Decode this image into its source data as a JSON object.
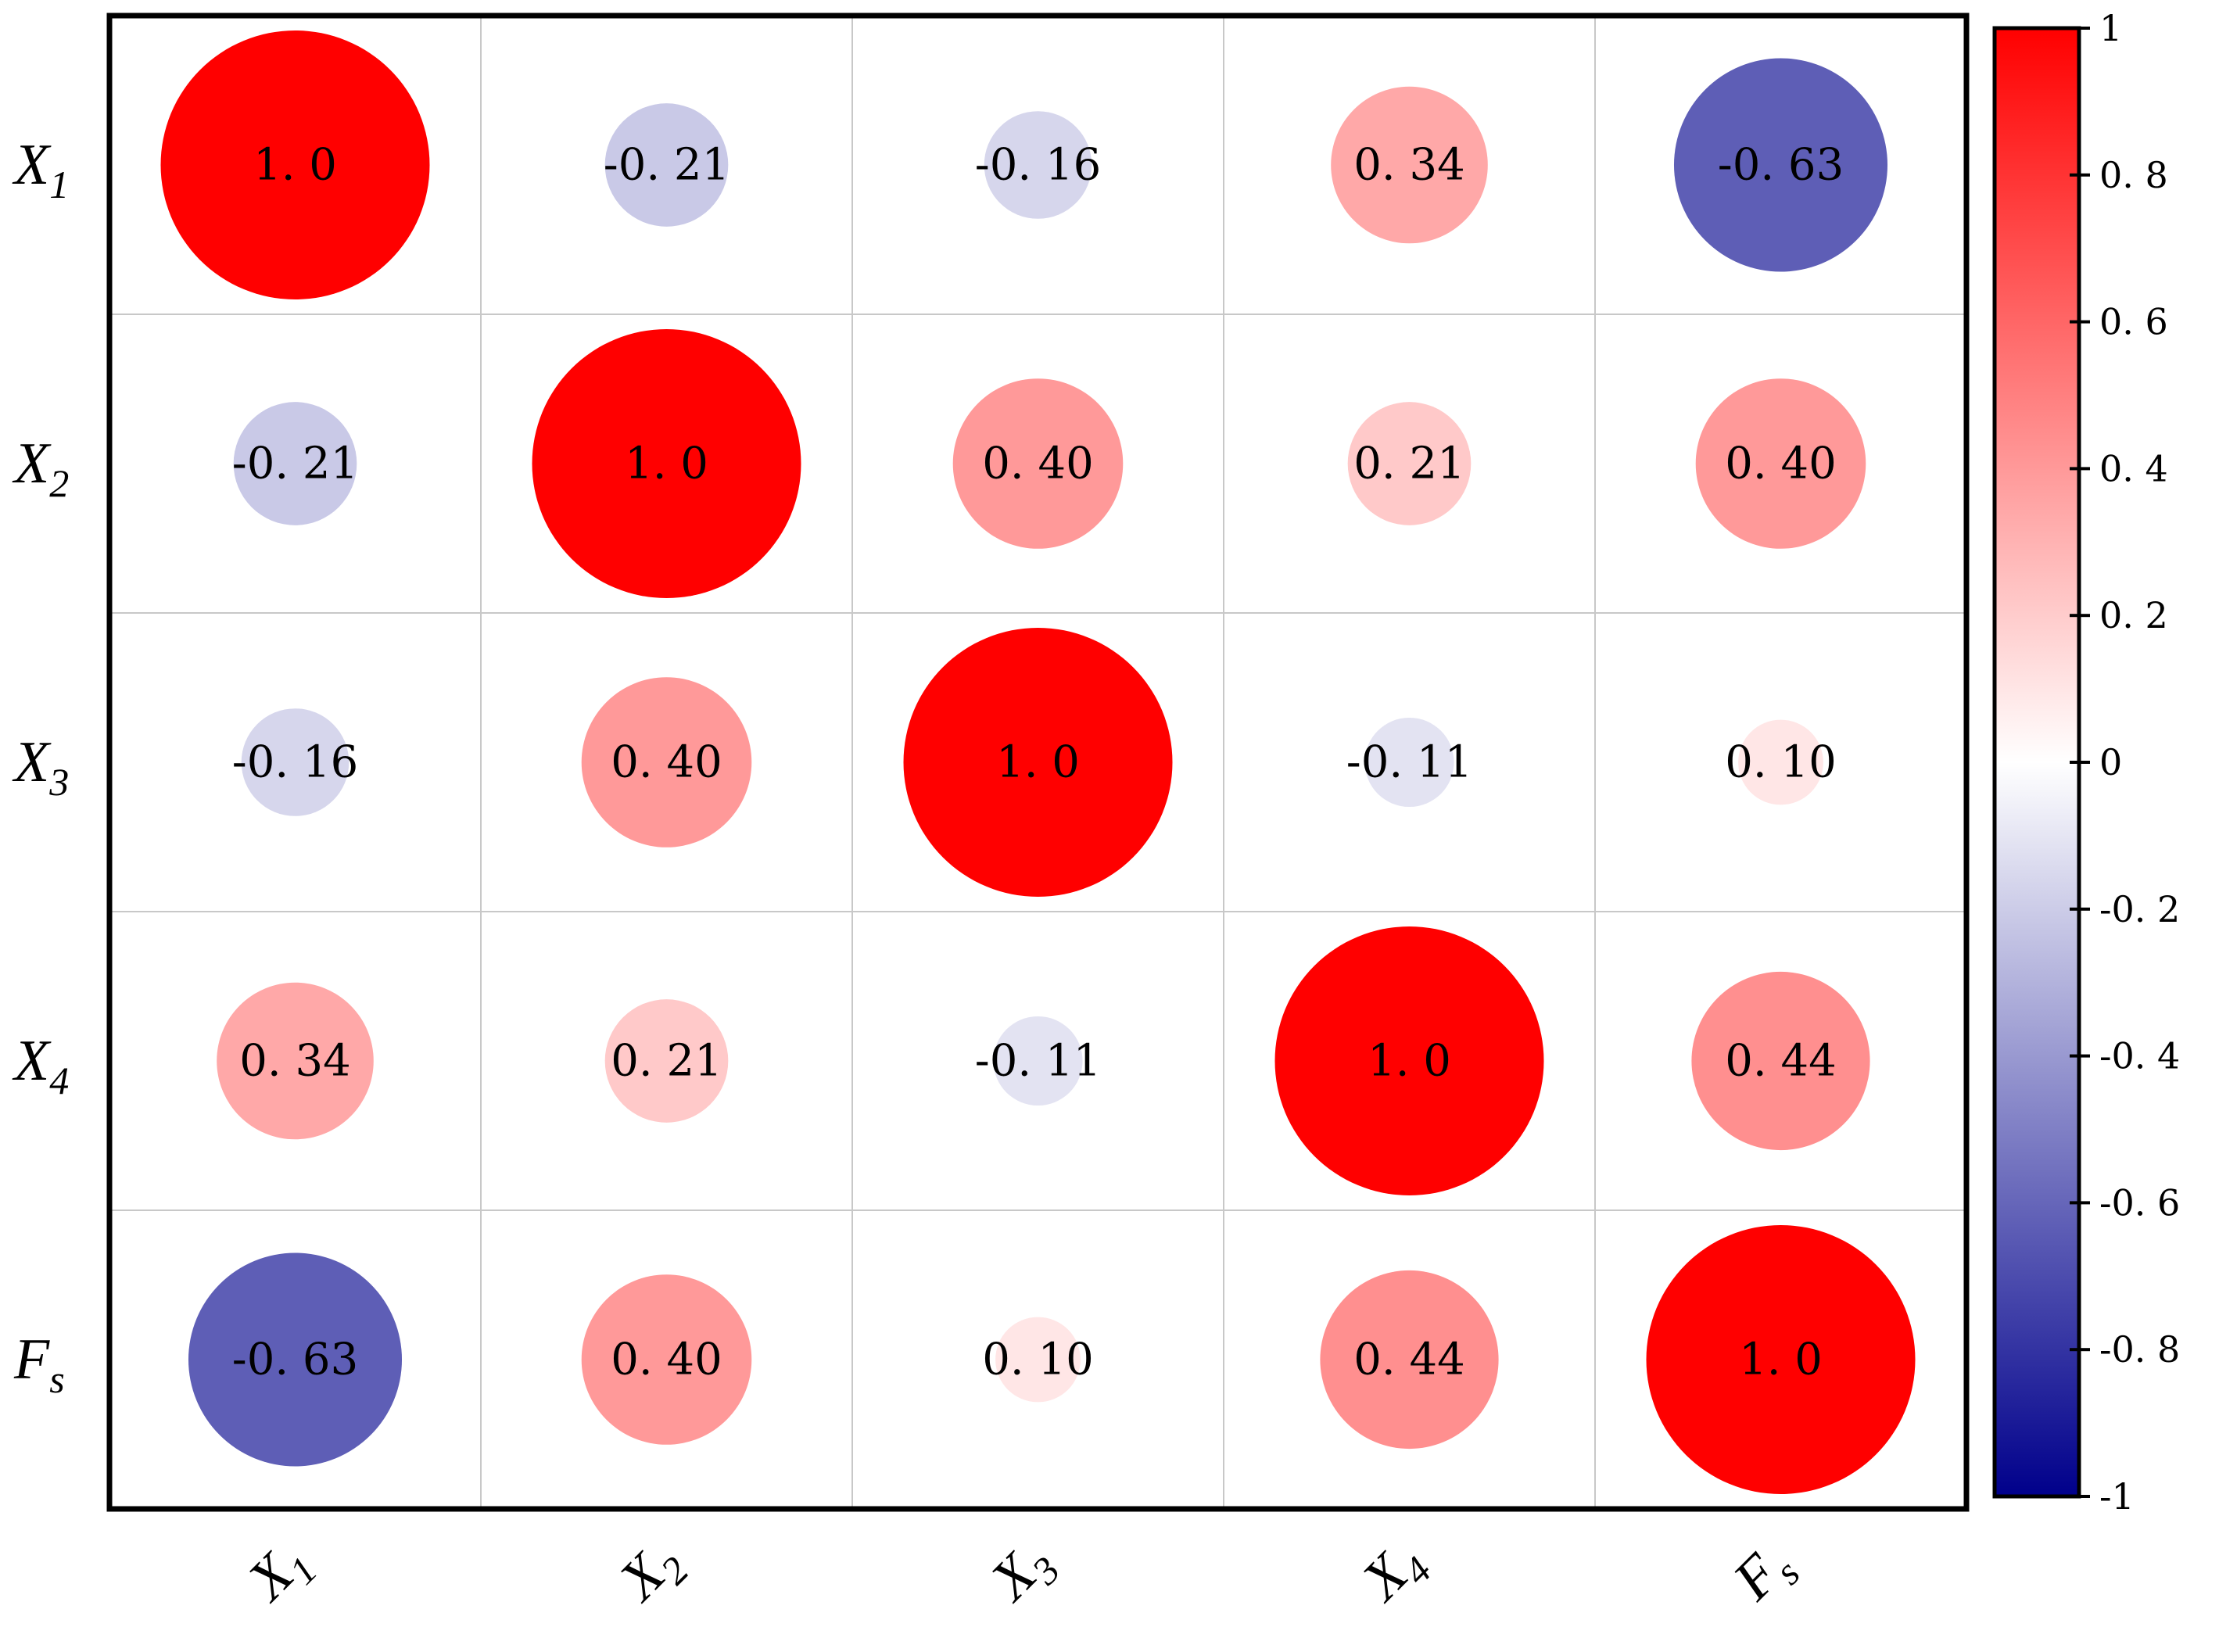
{
  "chart_data": {
    "type": "correlation-matrix",
    "variables": [
      {
        "main": "X",
        "sub": "1"
      },
      {
        "main": "X",
        "sub": "2"
      },
      {
        "main": "X",
        "sub": "3"
      },
      {
        "main": "X",
        "sub": "4"
      },
      {
        "main": "F",
        "sub": "s"
      }
    ],
    "values": [
      [
        1.0,
        -0.21,
        -0.16,
        0.34,
        -0.63
      ],
      [
        -0.21,
        1.0,
        0.4,
        0.21,
        0.4
      ],
      [
        -0.16,
        0.4,
        1.0,
        -0.11,
        0.1
      ],
      [
        0.34,
        0.21,
        -0.11,
        1.0,
        0.44
      ],
      [
        -0.63,
        0.4,
        0.1,
        0.44,
        1.0
      ]
    ],
    "labels": [
      [
        "1. 0",
        "-0. 21",
        "-0. 16",
        "0. 34",
        "-0. 63"
      ],
      [
        "-0. 21",
        "1. 0",
        "0. 40",
        "0. 21",
        "0. 40"
      ],
      [
        "-0. 16",
        "0. 40",
        "1. 0",
        "-0. 11",
        "0. 10"
      ],
      [
        "0. 34",
        "0. 21",
        "-0. 11",
        "1. 0",
        "0. 44"
      ],
      [
        "-0. 63",
        "0. 40",
        "0. 10",
        "0. 44",
        "1. 0"
      ]
    ],
    "colorbar": {
      "range": [
        -1,
        1
      ],
      "ticks": [
        1,
        0.8,
        0.6,
        0.4,
        0.2,
        0,
        -0.2,
        -0.4,
        -0.6,
        -0.8,
        -1
      ],
      "tick_labels": [
        "1",
        "0. 8",
        "0. 6",
        "0. 4",
        "0. 2",
        "0",
        "-0. 2",
        "-0. 4",
        "-0. 6",
        "-0. 8",
        "-1"
      ],
      "colors": {
        "max": "#ff0000",
        "mid": "#ffffff",
        "min": "#00008b"
      }
    },
    "grid": true
  }
}
